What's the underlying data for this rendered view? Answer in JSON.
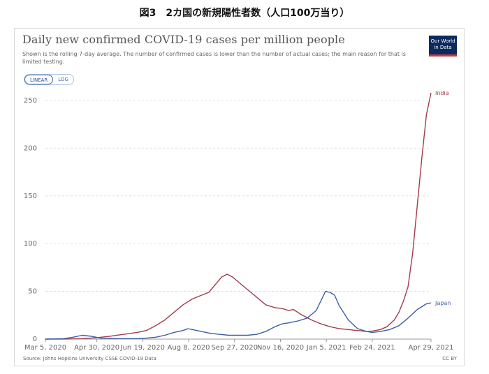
{
  "figure_caption": "図3　2カ国の新規陽性者数（人口100万当り）",
  "chart_card": {
    "title": "Daily new confirmed COVID-19 cases per million people",
    "subtitle": "Shown is the rolling 7-day average. The number of confirmed cases is lower than the number of actual cases; the main reason for that is limited testing.",
    "logo_line1": "Our World",
    "logo_line2": "in Data",
    "scale_toggle": {
      "linear_label": "LINEAR",
      "log_label": "LOG",
      "selected": "LINEAR"
    },
    "source": "Source: Johns Hopkins University CSSE COVID-19 Data",
    "license": "CC BY"
  },
  "chart_data": {
    "type": "line",
    "title": "Daily new confirmed COVID-19 cases per million people",
    "xlabel": "",
    "ylabel": "",
    "ylim": [
      0,
      250
    ],
    "yticks": [
      0,
      50,
      100,
      150,
      200,
      250
    ],
    "grid": true,
    "x_ticks": [
      {
        "day": 0,
        "label": "Mar 5, 2020"
      },
      {
        "day": 56,
        "label": "Apr 30, 2020"
      },
      {
        "day": 106,
        "label": "Jun 19, 2020"
      },
      {
        "day": 156,
        "label": "Aug 8, 2020"
      },
      {
        "day": 206,
        "label": "Sep 27, 2020"
      },
      {
        "day": 256,
        "label": "Nov 16, 2020"
      },
      {
        "day": 306,
        "label": "Jan 5, 2021"
      },
      {
        "day": 356,
        "label": "Feb 24, 2021"
      },
      {
        "day": 420,
        "label": "Apr 29, 2021"
      }
    ],
    "x_domain": [
      0,
      420
    ],
    "series": [
      {
        "name": "India",
        "color": "#a33b4d",
        "points": [
          [
            0,
            0
          ],
          [
            20,
            0.1
          ],
          [
            40,
            0.5
          ],
          [
            56,
            1.5
          ],
          [
            70,
            3
          ],
          [
            85,
            5
          ],
          [
            100,
            7
          ],
          [
            110,
            9
          ],
          [
            120,
            14
          ],
          [
            130,
            20
          ],
          [
            140,
            28
          ],
          [
            150,
            36
          ],
          [
            160,
            42
          ],
          [
            170,
            46
          ],
          [
            178,
            49
          ],
          [
            185,
            57
          ],
          [
            192,
            65
          ],
          [
            198,
            68
          ],
          [
            204,
            65
          ],
          [
            210,
            60
          ],
          [
            220,
            52
          ],
          [
            230,
            44
          ],
          [
            240,
            36
          ],
          [
            250,
            33
          ],
          [
            258,
            32
          ],
          [
            265,
            30
          ],
          [
            270,
            31
          ],
          [
            280,
            25
          ],
          [
            290,
            20
          ],
          [
            300,
            16
          ],
          [
            310,
            13
          ],
          [
            320,
            11
          ],
          [
            330,
            10
          ],
          [
            340,
            9
          ],
          [
            350,
            8
          ],
          [
            356,
            8.5
          ],
          [
            365,
            10
          ],
          [
            372,
            13
          ],
          [
            380,
            20
          ],
          [
            385,
            28
          ],
          [
            390,
            40
          ],
          [
            395,
            55
          ],
          [
            400,
            90
          ],
          [
            405,
            140
          ],
          [
            410,
            190
          ],
          [
            415,
            235
          ],
          [
            420,
            258
          ]
        ]
      },
      {
        "name": "Japan",
        "color": "#3e5ea5",
        "points": [
          [
            0,
            0
          ],
          [
            20,
            0.5
          ],
          [
            30,
            2
          ],
          [
            40,
            4
          ],
          [
            50,
            3
          ],
          [
            60,
            1
          ],
          [
            80,
            0.5
          ],
          [
            100,
            0.5
          ],
          [
            110,
            1
          ],
          [
            120,
            2
          ],
          [
            130,
            4
          ],
          [
            140,
            7
          ],
          [
            150,
            9
          ],
          [
            155,
            11
          ],
          [
            160,
            10
          ],
          [
            170,
            8
          ],
          [
            180,
            6
          ],
          [
            190,
            5
          ],
          [
            200,
            4
          ],
          [
            210,
            4
          ],
          [
            220,
            4
          ],
          [
            230,
            5
          ],
          [
            240,
            8
          ],
          [
            250,
            13
          ],
          [
            258,
            16
          ],
          [
            265,
            17
          ],
          [
            275,
            19
          ],
          [
            285,
            22
          ],
          [
            295,
            30
          ],
          [
            300,
            40
          ],
          [
            305,
            50
          ],
          [
            310,
            49
          ],
          [
            315,
            46
          ],
          [
            320,
            35
          ],
          [
            330,
            20
          ],
          [
            340,
            11
          ],
          [
            350,
            8
          ],
          [
            356,
            7
          ],
          [
            365,
            8
          ],
          [
            375,
            10
          ],
          [
            385,
            14
          ],
          [
            395,
            22
          ],
          [
            405,
            31
          ],
          [
            415,
            37
          ],
          [
            420,
            38
          ]
        ]
      }
    ]
  }
}
